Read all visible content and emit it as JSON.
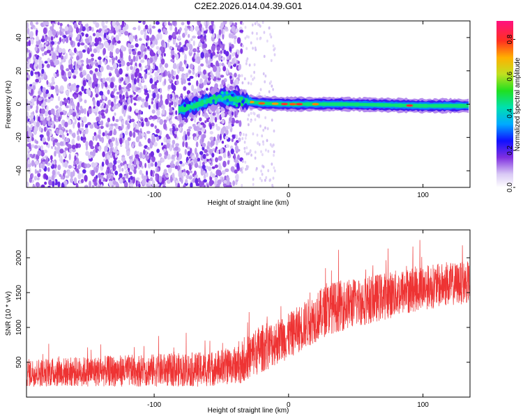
{
  "title": "C2E2.2026.014.04.39.G01",
  "chart_data": [
    {
      "type": "heatmap",
      "xlabel": "Height of straight line (km)",
      "ylabel": "Frequency (Hz)",
      "xlim": [
        -195,
        135
      ],
      "ylim": [
        -50,
        50
      ],
      "x_ticks": [
        -100,
        0,
        100
      ],
      "x_tick_labels": [
        "-100",
        "0",
        "100"
      ],
      "y_ticks": [
        -40,
        -20,
        0,
        20,
        40
      ],
      "y_tick_labels": [
        "-40",
        "-20",
        "0",
        "20",
        "40"
      ],
      "noise_region_x": [
        -195,
        -35
      ],
      "signal_band": [
        {
          "x": -80,
          "f": -3
        },
        {
          "x": -70,
          "f": -1
        },
        {
          "x": -60,
          "f": 2
        },
        {
          "x": -50,
          "f": 4
        },
        {
          "x": -40,
          "f": 3
        },
        {
          "x": -30,
          "f": 1.5
        },
        {
          "x": -20,
          "f": 0.5
        },
        {
          "x": 0,
          "f": 0
        },
        {
          "x": 40,
          "f": 0
        },
        {
          "x": 100,
          "f": -1
        },
        {
          "x": 135,
          "f": -1
        }
      ],
      "colorbar": {
        "label": "Normalized spectral amplitude",
        "range": [
          0,
          0.9
        ],
        "ticks": [
          0,
          0.2,
          0.4,
          0.6,
          0.8
        ],
        "tick_labels": [
          "0.0",
          "0.2",
          "0.4",
          "0.6",
          "0.8"
        ]
      }
    },
    {
      "type": "line",
      "xlabel": "Height of straight line (km)",
      "ylabel": "SNR (10 * v/v)",
      "xlim": [
        -195,
        135
      ],
      "ylim": [
        0,
        2400
      ],
      "x_ticks": [
        -100,
        0,
        100
      ],
      "x_tick_labels": [
        "-100",
        "0",
        "100"
      ],
      "y_ticks": [
        500,
        1000,
        1500,
        2000
      ],
      "y_tick_labels": [
        "500",
        "1000",
        "1500",
        "2000"
      ],
      "line_color": "#ee3333",
      "trend": [
        {
          "x": -195,
          "low": 150,
          "high": 550
        },
        {
          "x": -60,
          "low": 150,
          "high": 650
        },
        {
          "x": -35,
          "low": 200,
          "high": 750
        },
        {
          "x": -25,
          "low": 300,
          "high": 1000
        },
        {
          "x": 0,
          "low": 550,
          "high": 1200
        },
        {
          "x": 30,
          "low": 900,
          "high": 1650
        },
        {
          "x": 60,
          "low": 1050,
          "high": 1750
        },
        {
          "x": 100,
          "low": 1250,
          "high": 1900
        },
        {
          "x": 135,
          "low": 1350,
          "high": 1950
        }
      ]
    }
  ]
}
